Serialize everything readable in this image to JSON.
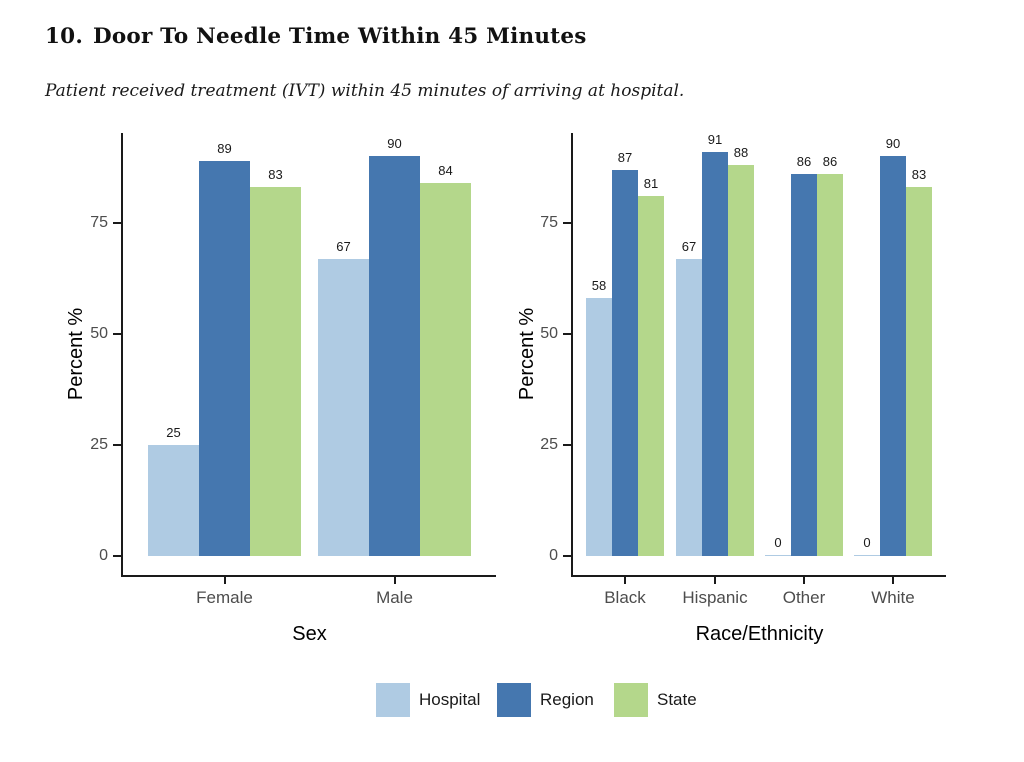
{
  "header": {
    "title_number": "10.",
    "title_text": "Door To Needle Time Within 45 Minutes",
    "subtitle": "Patient received treatment (IVT) within 45 minutes of arriving at hospital."
  },
  "palette": {
    "hospital": "#AFCBE3",
    "region": "#4577AF",
    "state": "#B4D78B",
    "axis_line": "#1a1a1a",
    "tick_label": "#4d4d4d",
    "value_label": "#1a1a1a",
    "axis_title": "#000000",
    "background": "#ffffff"
  },
  "chart_data": [
    {
      "type": "bar",
      "panel": "sex",
      "title": "",
      "xlabel": "Sex",
      "ylabel": "Percent %",
      "categories": [
        "Female",
        "Male"
      ],
      "series": [
        {
          "name": "Hospital",
          "values": [
            25,
            67
          ]
        },
        {
          "name": "Region",
          "values": [
            89,
            90
          ]
        },
        {
          "name": "State",
          "values": [
            83,
            84
          ]
        }
      ],
      "yticks": [
        0,
        25,
        50,
        75
      ],
      "ylim": [
        0,
        95
      ],
      "grid": false,
      "value_labels": true,
      "legend_position": "bottom"
    },
    {
      "type": "bar",
      "panel": "race_ethnicity",
      "title": "",
      "xlabel": "Race/Ethnicity",
      "ylabel": "Percent %",
      "categories": [
        "Black",
        "Hispanic",
        "Other",
        "White"
      ],
      "series": [
        {
          "name": "Hospital",
          "values": [
            58,
            67,
            0,
            0
          ]
        },
        {
          "name": "Region",
          "values": [
            87,
            91,
            86,
            90
          ]
        },
        {
          "name": "State",
          "values": [
            81,
            88,
            86,
            83
          ]
        }
      ],
      "yticks": [
        0,
        25,
        50,
        75
      ],
      "ylim": [
        0,
        95
      ],
      "grid": false,
      "value_labels": true,
      "legend_position": "bottom"
    }
  ],
  "legend": {
    "items": [
      {
        "label": "Hospital",
        "color": "#AFCBE3"
      },
      {
        "label": "Region",
        "color": "#4577AF"
      },
      {
        "label": "State",
        "color": "#B4D78B"
      }
    ]
  }
}
